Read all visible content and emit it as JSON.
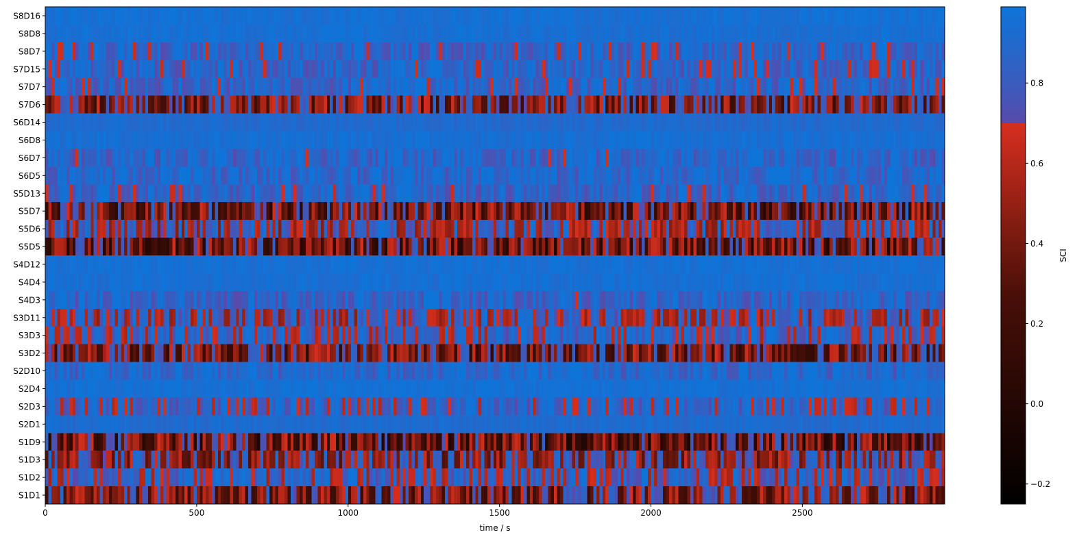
{
  "chart_data": {
    "type": "heatmap",
    "title": "",
    "xlabel": "time / s",
    "ylabel": "",
    "xlim": [
      0,
      2970
    ],
    "x_ticks": [
      0,
      500,
      1000,
      1500,
      2000,
      2500
    ],
    "x_tick_labels": [
      "0",
      "500",
      "1000",
      "1500",
      "2000",
      "2500"
    ],
    "channels_top_to_bottom": [
      "S8D16",
      "S8D8",
      "S8D7",
      "S7D15",
      "S7D7",
      "S7D6",
      "S6D14",
      "S6D8",
      "S6D7",
      "S6D5",
      "S5D13",
      "S5D7",
      "S5D6",
      "S5D5",
      "S4D12",
      "S4D4",
      "S4D3",
      "S3D11",
      "S3D3",
      "S3D2",
      "S2D10",
      "S2D4",
      "S2D3",
      "S2D1",
      "S1D9",
      "S1D3",
      "S1D2",
      "S1D1"
    ],
    "channel_mean_sci": [
      0.97,
      0.96,
      0.86,
      0.86,
      0.86,
      0.55,
      0.92,
      0.96,
      0.88,
      0.9,
      0.86,
      0.45,
      0.72,
      0.43,
      0.97,
      0.96,
      0.88,
      0.74,
      0.8,
      0.5,
      0.9,
      0.97,
      0.82,
      0.93,
      0.4,
      0.62,
      0.78,
      0.52
    ],
    "time_window_s": 10,
    "colorbar": {
      "label": "SCI",
      "range": [
        -0.25,
        0.99
      ],
      "threshold": 0.7,
      "ticks": [
        -0.2,
        0.0,
        0.2,
        0.4,
        0.6,
        0.8
      ],
      "tick_labels": [
        "−0.2",
        "0.0",
        "0.2",
        "0.4",
        "0.6",
        "0.8"
      ],
      "colors": {
        "black": "#000000",
        "dark_red": "#4a0f08",
        "red": "#d62f1e",
        "purple": "#5b49aa",
        "blue": "#0f74d8"
      }
    }
  }
}
